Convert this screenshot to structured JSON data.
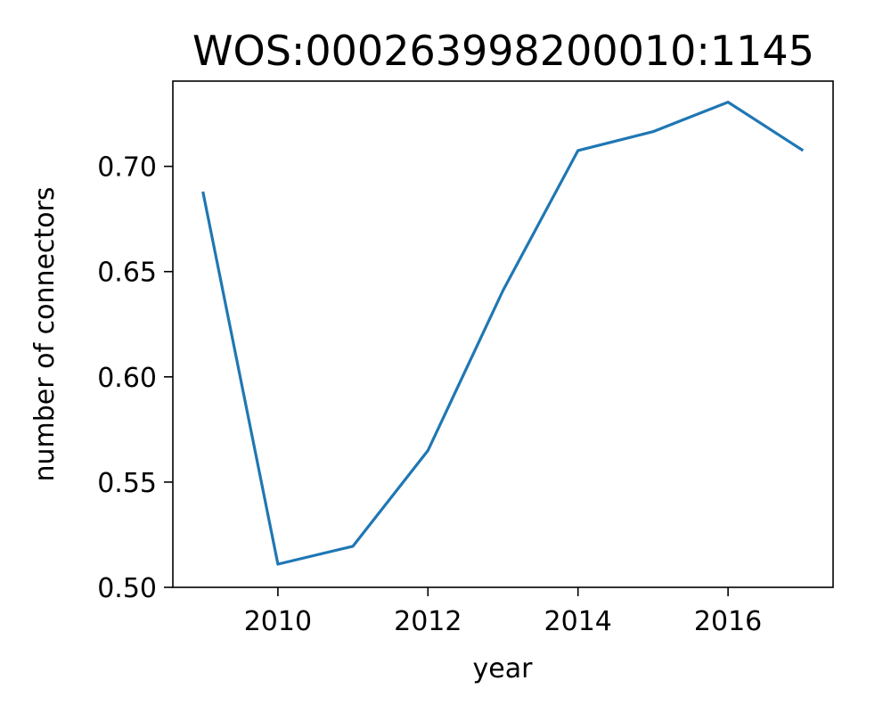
{
  "chart_data": {
    "type": "line",
    "title": "WOS:000263998200010:1145",
    "xlabel": "year",
    "ylabel": "number of connectors",
    "xlim": [
      2008.6,
      2017.4
    ],
    "ylim": [
      0.5,
      0.7405
    ],
    "x_ticks": [
      2010,
      2012,
      2014,
      2016
    ],
    "y_ticks": [
      0.5,
      0.55,
      0.6,
      0.65,
      0.7
    ],
    "x_tick_labels": [
      "2010",
      "2012",
      "2014",
      "2016"
    ],
    "y_tick_labels": [
      "0.50",
      "0.55",
      "0.60",
      "0.65",
      "0.70"
    ],
    "grid": false,
    "legend": "none",
    "series": [
      {
        "color": "#1f77b4",
        "x": [
          2009,
          2010,
          2011,
          2012,
          2013,
          2014,
          2015,
          2016,
          2017
        ],
        "y": [
          0.688,
          0.511,
          0.5195,
          0.565,
          0.641,
          0.7075,
          0.7165,
          0.7305,
          0.7075
        ]
      }
    ]
  }
}
